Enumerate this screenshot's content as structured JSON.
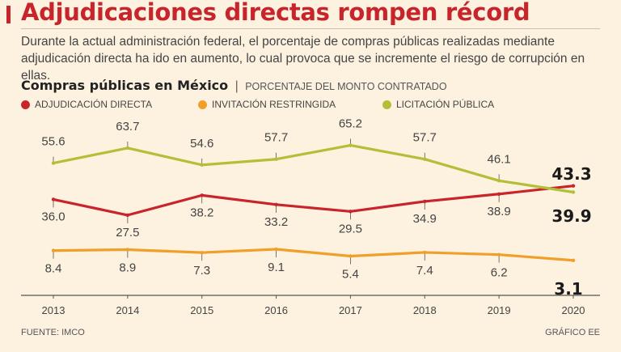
{
  "headline": "Adjudicaciones directas rompen récord",
  "deck": "Durante la actual administración federal, el porcentaje de compras públicas realizadas mediante adjudicación directa ha ido en aumento, lo cual provoca que se incremente el riesgo de corrupción en ellas.",
  "colors": {
    "accent": "#c8242b",
    "adjudicacion": "#c8242b",
    "invitacion": "#f0a02a",
    "licitacion": "#b3bf38",
    "background": "#fdf1e0"
  },
  "chart_data": {
    "type": "line",
    "title": "Compras públicas en México",
    "separator": "|",
    "subtitle": "PORCENTAJE DEL MONTO CONTRATADO",
    "categories": [
      "2013",
      "2014",
      "2015",
      "2016",
      "2017",
      "2018",
      "2019",
      "2020"
    ],
    "ylim": [
      0,
      70
    ],
    "grid": false,
    "legend_position": "top",
    "series": [
      {
        "name": "ADJUDICACIÓN DIRECTA",
        "color": "#c8242b",
        "values": [
          36.0,
          27.5,
          38.2,
          33.2,
          29.5,
          34.9,
          38.9,
          43.3
        ],
        "labels": [
          "36.0",
          "27.5",
          "38.2",
          "33.2",
          "29.5",
          "34.9",
          "38.9",
          "43.3"
        ]
      },
      {
        "name": "INVITACIÓN RESTRINGIDA",
        "color": "#f0a02a",
        "values": [
          8.4,
          8.9,
          7.3,
          9.1,
          5.4,
          7.4,
          6.2,
          3.1
        ],
        "labels": [
          "8.4",
          "8.9",
          "7.3",
          "9.1",
          "5.4",
          "7.4",
          "6.2",
          "3.1"
        ]
      },
      {
        "name": "LICITACIÓN PÚBLICA",
        "color": "#b3bf38",
        "values": [
          55.6,
          63.7,
          54.6,
          57.7,
          65.2,
          57.7,
          46.1,
          39.9
        ],
        "labels": [
          "55.6",
          "63.7",
          "54.6",
          "57.7",
          "65.2",
          "57.7",
          "46.1",
          "39.9"
        ]
      }
    ],
    "source": "FUENTE: IMCO",
    "credit": "GRÁFICO EE"
  }
}
